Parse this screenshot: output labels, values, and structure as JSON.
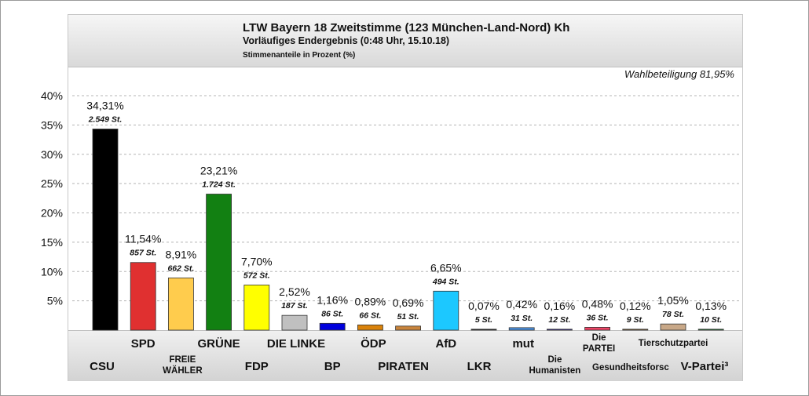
{
  "header": {
    "title": "LTW Bayern 18 Zweitstimme (123 München-Land-Nord) Kh",
    "subtitle": "Vorläufiges Endergebnis (0:48 Uhr, 15.10.18)",
    "unit_note": "Stimmenanteile in Prozent (%)"
  },
  "turnout_label": "Wahlbeteiligung 81,95%",
  "chart_data": {
    "type": "bar",
    "title": "LTW Bayern 18 Zweitstimme (123 München-Land-Nord) Kh",
    "subtitle": "Vorläufiges Endergebnis (0:48 Uhr, 15.10.18)",
    "ylabel": "Stimmenanteile in Prozent (%)",
    "ylim": [
      0,
      40
    ],
    "yticks": [
      5,
      10,
      15,
      20,
      25,
      30,
      35,
      40
    ],
    "ytick_labels": [
      "5%",
      "10%",
      "15%",
      "20%",
      "25%",
      "30%",
      "35%",
      "40%"
    ],
    "grid": true,
    "categories": [
      "CSU",
      "SPD",
      "FREIE WÄHLER",
      "GRÜNE",
      "FDP",
      "DIE LINKE",
      "BP",
      "ÖDP",
      "PIRATEN",
      "AfD",
      "LKR",
      "mut",
      "Die Humanisten",
      "Die PARTEI",
      "Gesundheitsforsc",
      "Tierschutzpartei",
      "V-Partei³"
    ],
    "values": [
      34.31,
      11.54,
      8.91,
      23.21,
      7.7,
      2.52,
      1.16,
      0.89,
      0.69,
      6.65,
      0.07,
      0.42,
      0.16,
      0.48,
      0.12,
      1.05,
      0.13
    ],
    "value_labels": [
      "34,31%",
      "11,54%",
      "8,91%",
      "23,21%",
      "7,70%",
      "2,52%",
      "1,16%",
      "0,89%",
      "0,69%",
      "6,65%",
      "0,07%",
      "0,42%",
      "0,16%",
      "0,48%",
      "0,12%",
      "1,05%",
      "0,13%"
    ],
    "votes": [
      2549,
      857,
      662,
      1724,
      572,
      187,
      86,
      66,
      51,
      494,
      5,
      31,
      12,
      36,
      9,
      78,
      10
    ],
    "vote_labels": [
      "2.549 St.",
      "857 St.",
      "662 St.",
      "1.724 St.",
      "572 St.",
      "187 St.",
      "86 St.",
      "66 St.",
      "51 St.",
      "494 St.",
      "5 St.",
      "31 St.",
      "12 St.",
      "36 St.",
      "9 St.",
      "78 St.",
      "10 St."
    ],
    "colors": [
      "#000000",
      "#e03030",
      "#ffcc4d",
      "#128012",
      "#ffff00",
      "#c0c0c0",
      "#0000dd",
      "#d9820a",
      "#c8843c",
      "#1cc8ff",
      "#202020",
      "#4a90e0",
      "#3a2aa0",
      "#ee4466",
      "#8a6a3a",
      "#c8a888",
      "#208030"
    ]
  }
}
